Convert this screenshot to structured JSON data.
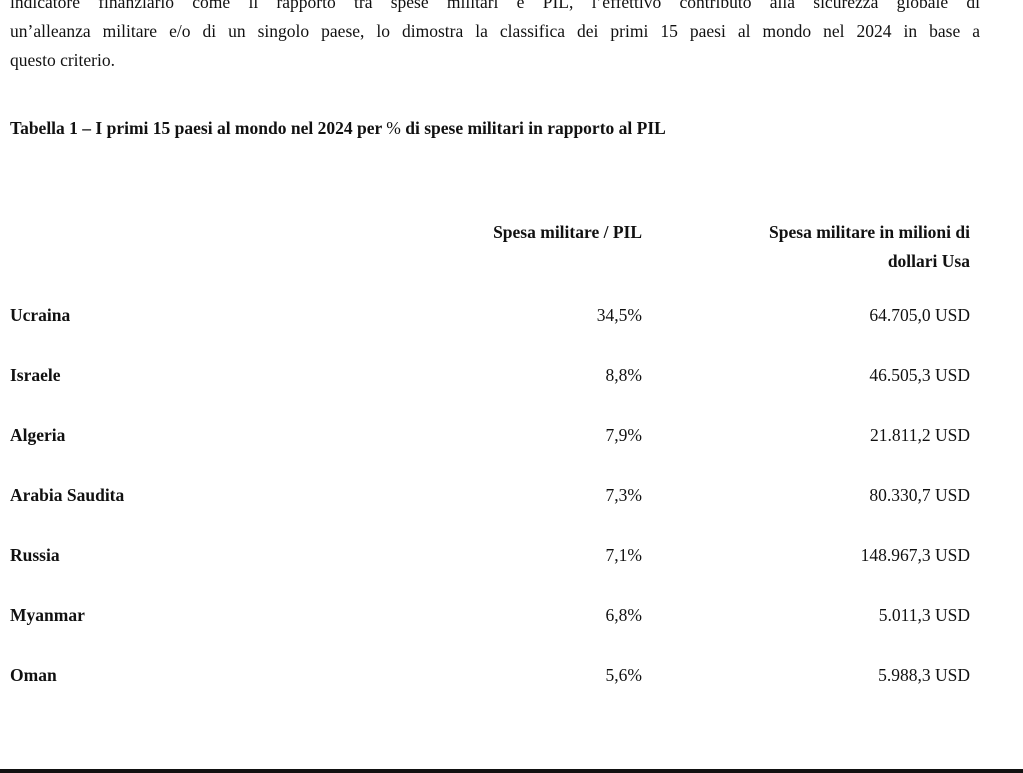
{
  "intro": {
    "line1": "indicatore finanziario come il rapporto tra spese militari e PIL, l’effettivo contributo alla sicurezza globale di",
    "line2": "un’alleanza militare e/o di un singolo paese, lo dimostra la classifica dei primi 15 paesi al mondo nel 2024 in base a",
    "line3": "questo criterio."
  },
  "caption": {
    "before": "Tabella 1 – I primi 15 paesi al mondo nel 2024 per ",
    "pct": "%",
    "after": " di spese militari in rapporto al PIL"
  },
  "table": {
    "headers": {
      "country": "",
      "ratio": "Spesa militare / PIL",
      "spend_line1": "Spesa militare in milioni di",
      "spend_line2": "dollari Usa"
    },
    "rows": [
      {
        "country": "Ucraina",
        "ratio": "34,5%",
        "spend": "64.705,0 USD"
      },
      {
        "country": "Israele",
        "ratio": "8,8%",
        "spend": "46.505,3 USD"
      },
      {
        "country": "Algeria",
        "ratio": "7,9%",
        "spend": "21.811,2 USD"
      },
      {
        "country": "Arabia Saudita",
        "ratio": "7,3%",
        "spend": "80.330,7 USD"
      },
      {
        "country": "Russia",
        "ratio": "7,1%",
        "spend": "148.967,3 USD"
      },
      {
        "country": "Myanmar",
        "ratio": "6,8%",
        "spend": "5.011,3 USD"
      },
      {
        "country": "Oman",
        "ratio": "5,6%",
        "spend": "5.988,3 USD"
      }
    ]
  }
}
